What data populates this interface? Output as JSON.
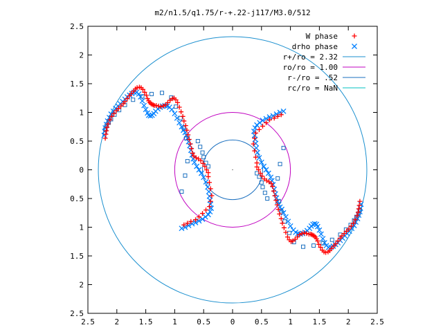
{
  "chart_data": {
    "type": "scatter",
    "title": "m2/n1.5/q1.75/r-+.22-j117/M3.0/512",
    "xlabel": "",
    "ylabel": "",
    "xlim": [
      -2.5,
      2.5
    ],
    "ylim": [
      -2.5,
      2.5
    ],
    "x_ticks": [
      "2.5",
      "2",
      "1.5",
      "1",
      "0.5",
      "0",
      "0.5",
      "1",
      "1.5",
      "2",
      "2.5"
    ],
    "y_ticks": [
      "2.5",
      "2",
      "1.5",
      "1",
      "0.5",
      "0",
      "0.5",
      "1",
      "1.5",
      "2",
      "2.5"
    ],
    "grid": false,
    "legend_position": "top-right",
    "legend": [
      {
        "label": "W phase",
        "marker": "plus",
        "color": "#ff0000"
      },
      {
        "label": "drho phase",
        "marker": "cross",
        "color": "#0080ff"
      },
      {
        "label": "r+/ro = 2.32",
        "marker": "line",
        "color": "#1a8fcf"
      },
      {
        "label": "ro/ro = 1.00",
        "marker": "line",
        "color": "#c000c0"
      },
      {
        "label": "r-/ro = .52",
        "marker": "line",
        "color": "#1a6fbf"
      },
      {
        "label": "rc/ro = NaN",
        "marker": "line",
        "color": "#00c0c0"
      }
    ],
    "circles": [
      {
        "name": "r+/ro = 2.32",
        "radius": 2.32,
        "color": "#1a8fcf"
      },
      {
        "name": "ro/ro = 1.00",
        "radius": 1.0,
        "color": "#c000c0"
      },
      {
        "name": "r-/ro = .52",
        "radius": 0.52,
        "color": "#1a6fbf"
      }
    ],
    "series": [
      {
        "name": "W phase",
        "marker": "plus",
        "color": "#ff0000",
        "x": [
          -2.2,
          -2.19,
          -2.18,
          -2.17,
          -2.15,
          -2.12,
          -2.09,
          -2.05,
          -2.01,
          -1.97,
          -1.93,
          -1.89,
          -1.86,
          -1.82,
          -1.78,
          -1.75,
          -1.71,
          -1.68,
          -1.65,
          -1.61,
          -1.58,
          -1.55,
          -1.52,
          -1.49,
          -1.47,
          -1.45,
          -1.43,
          -1.41,
          -1.39,
          -1.37,
          -1.35,
          -1.32,
          -1.28,
          -1.24,
          -1.2,
          -1.16,
          -1.12,
          -1.08,
          -1.04,
          -1.01,
          -0.98,
          -0.95,
          -0.92,
          -0.89,
          -0.86,
          -0.84,
          -0.81,
          -0.79,
          -0.77,
          -0.75,
          -0.73,
          -0.71,
          -0.69,
          -0.67,
          -0.63,
          -0.59,
          -0.55,
          -0.51,
          -0.48,
          -0.45,
          -0.42,
          -0.42,
          -0.4,
          -0.38,
          -0.36,
          -0.38,
          -0.4,
          -0.46,
          -0.52,
          -0.58,
          -0.64,
          -0.72,
          -0.78,
          -0.84,
          2.2,
          2.19,
          2.18,
          2.17,
          2.15,
          2.12,
          2.09,
          2.05,
          2.01,
          1.97,
          1.93,
          1.89,
          1.86,
          1.82,
          1.78,
          1.75,
          1.71,
          1.68,
          1.65,
          1.61,
          1.58,
          1.55,
          1.52,
          1.49,
          1.47,
          1.45,
          1.43,
          1.41,
          1.39,
          1.37,
          1.35,
          1.32,
          1.28,
          1.24,
          1.2,
          1.16,
          1.12,
          1.08,
          1.04,
          1.01,
          0.98,
          0.95,
          0.92,
          0.89,
          0.86,
          0.84,
          0.81,
          0.79,
          0.77,
          0.75,
          0.73,
          0.71,
          0.69,
          0.67,
          0.63,
          0.59,
          0.55,
          0.51,
          0.48,
          0.45,
          0.42,
          0.42,
          0.4,
          0.38,
          0.36,
          0.38,
          0.4,
          0.46,
          0.52,
          0.58,
          0.64,
          0.72,
          0.78,
          0.84
        ],
        "y": [
          0.55,
          0.62,
          0.68,
          0.74,
          0.8,
          0.87,
          0.93,
          0.98,
          1.03,
          1.07,
          1.11,
          1.15,
          1.19,
          1.24,
          1.29,
          1.33,
          1.37,
          1.41,
          1.43,
          1.44,
          1.43,
          1.4,
          1.35,
          1.3,
          1.24,
          1.2,
          1.17,
          1.15,
          1.14,
          1.13,
          1.12,
          1.12,
          1.11,
          1.1,
          1.11,
          1.13,
          1.17,
          1.21,
          1.24,
          1.25,
          1.22,
          1.17,
          1.09,
          1.01,
          0.93,
          0.85,
          0.77,
          0.69,
          0.61,
          0.53,
          0.45,
          0.37,
          0.29,
          0.24,
          0.21,
          0.19,
          0.16,
          0.11,
          0.06,
          0.0,
          -0.05,
          -0.12,
          -0.22,
          -0.33,
          -0.45,
          -0.55,
          -0.64,
          -0.7,
          -0.76,
          -0.82,
          -0.87,
          -0.9,
          -0.93,
          -0.96,
          -0.55,
          -0.62,
          -0.68,
          -0.74,
          -0.8,
          -0.87,
          -0.93,
          -0.98,
          -1.03,
          -1.07,
          -1.11,
          -1.15,
          -1.19,
          -1.24,
          -1.29,
          -1.33,
          -1.37,
          -1.41,
          -1.43,
          -1.44,
          -1.43,
          -1.4,
          -1.35,
          -1.3,
          -1.24,
          -1.2,
          -1.17,
          -1.15,
          -1.14,
          -1.13,
          -1.12,
          -1.12,
          -1.11,
          -1.1,
          -1.11,
          -1.13,
          -1.17,
          -1.21,
          -1.24,
          -1.25,
          -1.22,
          -1.17,
          -1.09,
          -1.01,
          -0.93,
          -0.85,
          -0.77,
          -0.69,
          -0.61,
          -0.53,
          -0.45,
          -0.37,
          -0.29,
          -0.24,
          -0.21,
          -0.19,
          -0.16,
          -0.11,
          -0.06,
          0.0,
          0.05,
          0.12,
          0.22,
          0.33,
          0.45,
          0.55,
          0.64,
          0.7,
          0.76,
          0.82,
          0.87,
          0.9,
          0.93,
          0.96
        ]
      },
      {
        "name": "drho phase",
        "marker": "cross",
        "color": "#0080ff",
        "x": [
          -2.22,
          -2.21,
          -2.2,
          -2.18,
          -2.16,
          -2.13,
          -2.1,
          -2.06,
          -2.02,
          -1.98,
          -1.94,
          -1.9,
          -1.86,
          -1.82,
          -1.78,
          -1.74,
          -1.7,
          -1.66,
          -1.62,
          -1.59,
          -1.56,
          -1.53,
          -1.5,
          -1.47,
          -1.45,
          -1.42,
          -1.39,
          -1.36,
          -1.33,
          -1.29,
          -1.25,
          -1.21,
          -1.17,
          -1.13,
          -1.09,
          -1.05,
          -1.0,
          -0.96,
          -0.92,
          -0.88,
          -0.85,
          -0.82,
          -0.8,
          -0.78,
          -0.76,
          -0.74,
          -0.72,
          -0.7,
          -0.68,
          -0.66,
          -0.62,
          -0.58,
          -0.54,
          -0.5,
          -0.46,
          -0.43,
          -0.41,
          -0.4,
          -0.39,
          -0.38,
          -0.37,
          -0.39,
          -0.42,
          -0.47,
          -0.52,
          -0.58,
          -0.64,
          -0.7,
          -0.76,
          -0.82,
          -0.88,
          2.22,
          2.21,
          2.2,
          2.18,
          2.16,
          2.13,
          2.1,
          2.06,
          2.02,
          1.98,
          1.94,
          1.9,
          1.86,
          1.82,
          1.78,
          1.74,
          1.7,
          1.66,
          1.62,
          1.59,
          1.56,
          1.53,
          1.5,
          1.47,
          1.45,
          1.42,
          1.39,
          1.36,
          1.33,
          1.29,
          1.25,
          1.21,
          1.17,
          1.13,
          1.09,
          1.05,
          1.0,
          0.96,
          0.92,
          0.88,
          0.85,
          0.82,
          0.8,
          0.78,
          0.76,
          0.74,
          0.72,
          0.7,
          0.68,
          0.66,
          0.62,
          0.58,
          0.54,
          0.5,
          0.46,
          0.43,
          0.41,
          0.4,
          0.39,
          0.38,
          0.37,
          0.39,
          0.42,
          0.47,
          0.52,
          0.58,
          0.64,
          0.7,
          0.76,
          0.82,
          0.88
        ],
        "y": [
          0.6,
          0.67,
          0.73,
          0.79,
          0.85,
          0.91,
          0.97,
          1.02,
          1.07,
          1.11,
          1.15,
          1.19,
          1.23,
          1.27,
          1.3,
          1.33,
          1.35,
          1.35,
          1.32,
          1.27,
          1.2,
          1.12,
          1.05,
          0.99,
          0.95,
          0.94,
          0.95,
          0.98,
          1.02,
          1.06,
          1.09,
          1.11,
          1.12,
          1.11,
          1.09,
          1.05,
          0.98,
          0.9,
          0.82,
          0.75,
          0.69,
          0.65,
          0.6,
          0.55,
          0.49,
          0.42,
          0.34,
          0.26,
          0.19,
          0.13,
          0.06,
          0.0,
          -0.06,
          -0.13,
          -0.21,
          -0.3,
          -0.38,
          -0.46,
          -0.53,
          -0.6,
          -0.67,
          -0.73,
          -0.78,
          -0.82,
          -0.86,
          -0.89,
          -0.92,
          -0.94,
          -0.97,
          -1.0,
          -1.02,
          -0.6,
          -0.67,
          -0.73,
          -0.79,
          -0.85,
          -0.91,
          -0.97,
          -1.02,
          -1.07,
          -1.11,
          -1.15,
          -1.19,
          -1.23,
          -1.27,
          -1.3,
          -1.33,
          -1.35,
          -1.35,
          -1.32,
          -1.27,
          -1.2,
          -1.12,
          -1.05,
          -0.99,
          -0.95,
          -0.94,
          -0.95,
          -0.98,
          -1.02,
          -1.06,
          -1.09,
          -1.11,
          -1.12,
          -1.11,
          -1.09,
          -1.05,
          -0.98,
          -0.9,
          -0.82,
          -0.75,
          -0.69,
          -0.65,
          -0.6,
          -0.55,
          -0.49,
          -0.42,
          -0.34,
          -0.26,
          -0.19,
          -0.13,
          -0.06,
          0.0,
          0.06,
          0.13,
          0.21,
          0.3,
          0.38,
          0.46,
          0.53,
          0.6,
          0.67,
          0.73,
          0.78,
          0.82,
          0.86,
          0.89,
          0.92,
          0.94,
          0.97,
          1.0,
          1.02
        ]
      },
      {
        "name": "",
        "marker": "square",
        "color": "#1a6fbf",
        "x": [
          -2.2,
          -2.18,
          -2.14,
          -2.1,
          -2.04,
          -1.96,
          -1.86,
          -1.72,
          -1.56,
          -1.4,
          -1.22,
          -1.06,
          -0.98,
          -0.9,
          -0.84,
          -0.8,
          -0.78,
          -0.82,
          -0.88,
          -0.6,
          -0.56,
          -0.52,
          -0.5,
          -0.46,
          -0.42,
          2.2,
          2.18,
          2.14,
          2.1,
          2.04,
          1.96,
          1.86,
          1.72,
          1.56,
          1.4,
          1.22,
          1.06,
          0.98,
          0.9,
          0.84,
          0.8,
          0.78,
          0.82,
          0.88,
          0.6,
          0.56,
          0.52,
          0.5,
          0.46,
          0.42
        ],
        "y": [
          0.7,
          0.76,
          0.82,
          0.88,
          0.96,
          1.04,
          1.13,
          1.22,
          1.28,
          1.32,
          1.34,
          1.26,
          1.1,
          0.9,
          0.72,
          0.55,
          0.15,
          -0.1,
          -0.38,
          0.5,
          0.4,
          0.3,
          0.22,
          0.12,
          0.06,
          -0.7,
          -0.76,
          -0.82,
          -0.88,
          -0.96,
          -1.04,
          -1.13,
          -1.22,
          -1.28,
          -1.32,
          -1.34,
          -1.26,
          -1.1,
          -0.9,
          -0.72,
          -0.55,
          -0.15,
          0.1,
          0.38,
          -0.5,
          -0.4,
          -0.3,
          -0.22,
          -0.12,
          -0.06
        ]
      }
    ]
  }
}
